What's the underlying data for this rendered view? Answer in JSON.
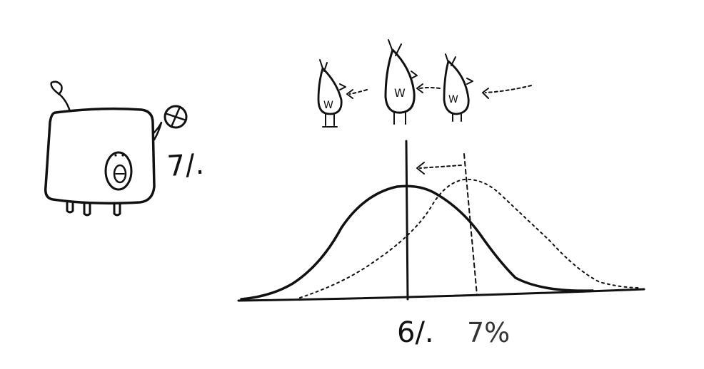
{
  "labels": {
    "piggy_rate": "7/.",
    "current_mean": "6/.",
    "shifted_mean": "7%"
  },
  "bird_letter": "W",
  "ink_color": "#111111",
  "icons": {
    "piggy_bank": "piggy-bank-icon",
    "coin": "coin-icon",
    "bird": "bird-icon",
    "arrow": "dashed-arrow-icon"
  }
}
